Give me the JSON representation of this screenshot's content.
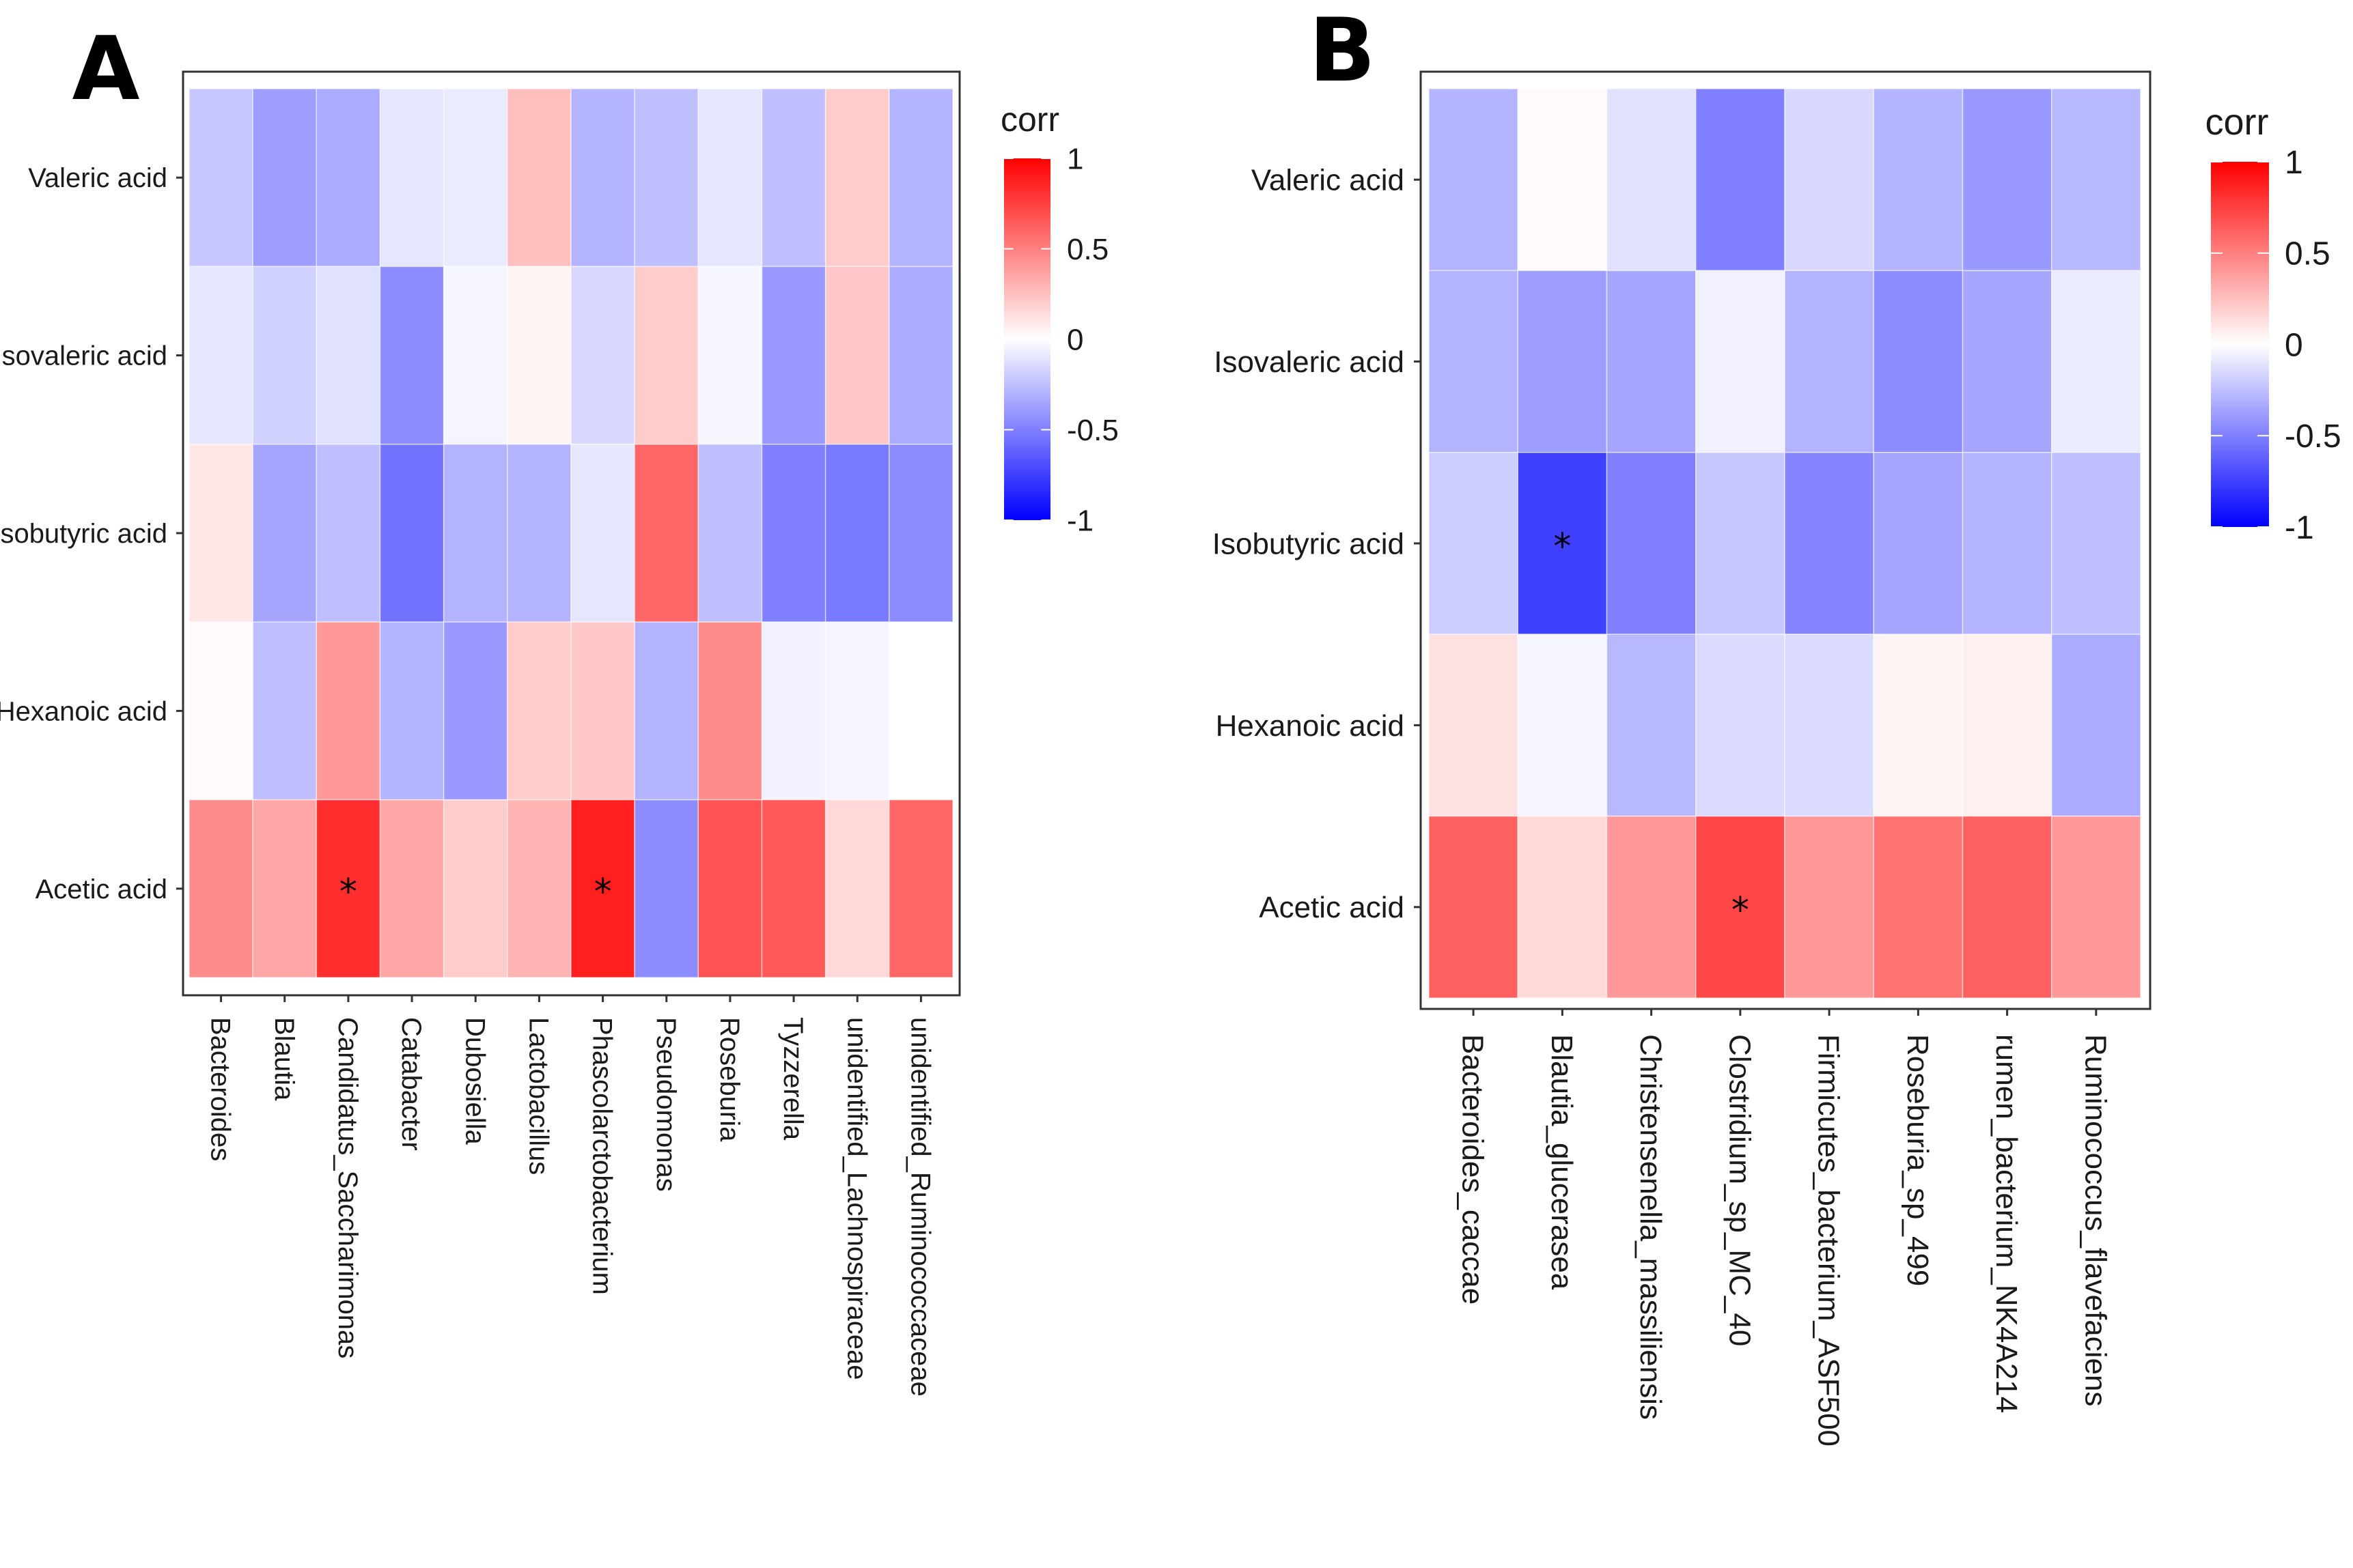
{
  "chart_data": [
    {
      "type": "heatmap",
      "panel_label": "A",
      "legend_title": "corr",
      "legend_ticks": [
        "1",
        "0.5",
        "0",
        "-0.5",
        "-1"
      ],
      "color_range": [
        -1,
        1
      ],
      "colors": {
        "low": "#0000ff",
        "mid": "#ffffff",
        "high": "#ff0000"
      },
      "rows": [
        "Valeric acid",
        "Isovaleric acid",
        "Isobutyric acid",
        "Hexanoic acid",
        "Acetic acid"
      ],
      "columns": [
        "Bacteroides",
        "Blautia",
        "Candidatus_Saccharimonas",
        "Catabacter",
        "Dubosiella",
        "Lactobacillus",
        "Phascolarctobacterium",
        "Pseudomonas",
        "Roseburia",
        "Tyzzerella",
        "unidentified_Lachnospiraceae",
        "unidentified_Ruminococcaceae"
      ],
      "values": [
        [
          -0.22,
          -0.38,
          -0.33,
          -0.1,
          -0.08,
          0.25,
          -0.3,
          -0.25,
          -0.1,
          -0.25,
          0.2,
          -0.3
        ],
        [
          -0.1,
          -0.18,
          -0.12,
          -0.45,
          -0.04,
          0.04,
          -0.15,
          0.2,
          -0.03,
          -0.4,
          0.22,
          -0.33
        ],
        [
          0.1,
          -0.35,
          -0.25,
          -0.55,
          -0.3,
          -0.3,
          -0.1,
          0.6,
          -0.25,
          -0.5,
          -0.52,
          -0.45
        ],
        [
          0.02,
          -0.25,
          0.4,
          -0.3,
          -0.4,
          0.2,
          0.22,
          -0.3,
          0.45,
          -0.05,
          -0.04,
          0.0
        ],
        [
          0.45,
          0.35,
          0.82,
          0.35,
          0.2,
          0.3,
          0.88,
          -0.45,
          0.68,
          0.65,
          0.15,
          0.6
        ]
      ],
      "significant": [
        {
          "row": "Acetic acid",
          "column": "Candidatus_Saccharimonas",
          "mark": "*"
        },
        {
          "row": "Acetic acid",
          "column": "Phascolarctobacterium",
          "mark": "*"
        }
      ]
    },
    {
      "type": "heatmap",
      "panel_label": "B",
      "legend_title": "corr",
      "legend_ticks": [
        "1",
        "0.5",
        "0",
        "-0.5",
        "-1"
      ],
      "color_range": [
        -1,
        1
      ],
      "colors": {
        "low": "#0000ff",
        "mid": "#ffffff",
        "high": "#ff0000"
      },
      "rows": [
        "Valeric acid",
        "Isovaleric acid",
        "Isobutyric acid",
        "Hexanoic acid",
        "Acetic acid"
      ],
      "columns": [
        "Bacteroides_caccae",
        "Blautia_glucerasea",
        "Christensenella_massiliensis",
        "Clostridium_sp_MC_40",
        "Firmicutes_bacterium_ASF500",
        "Roseburia_sp_499",
        "rumen_bacterium_NK4A214",
        "Ruminococcus_flavefaciens"
      ],
      "values": [
        [
          -0.3,
          0.02,
          -0.12,
          -0.5,
          -0.15,
          -0.3,
          -0.4,
          -0.28
        ],
        [
          -0.3,
          -0.38,
          -0.35,
          -0.06,
          -0.3,
          -0.45,
          -0.35,
          -0.08
        ],
        [
          -0.2,
          -0.75,
          -0.5,
          -0.22,
          -0.48,
          -0.35,
          -0.3,
          -0.25
        ],
        [
          0.12,
          -0.04,
          -0.28,
          -0.14,
          -0.14,
          0.04,
          0.06,
          -0.33
        ],
        [
          0.62,
          0.15,
          0.4,
          0.72,
          0.4,
          0.55,
          0.62,
          0.4
        ]
      ],
      "significant": [
        {
          "row": "Isobutyric acid",
          "column": "Blautia_glucerasea",
          "mark": "*"
        },
        {
          "row": "Acetic acid",
          "column": "Clostridium_sp_MC_40",
          "mark": "*"
        }
      ]
    }
  ]
}
